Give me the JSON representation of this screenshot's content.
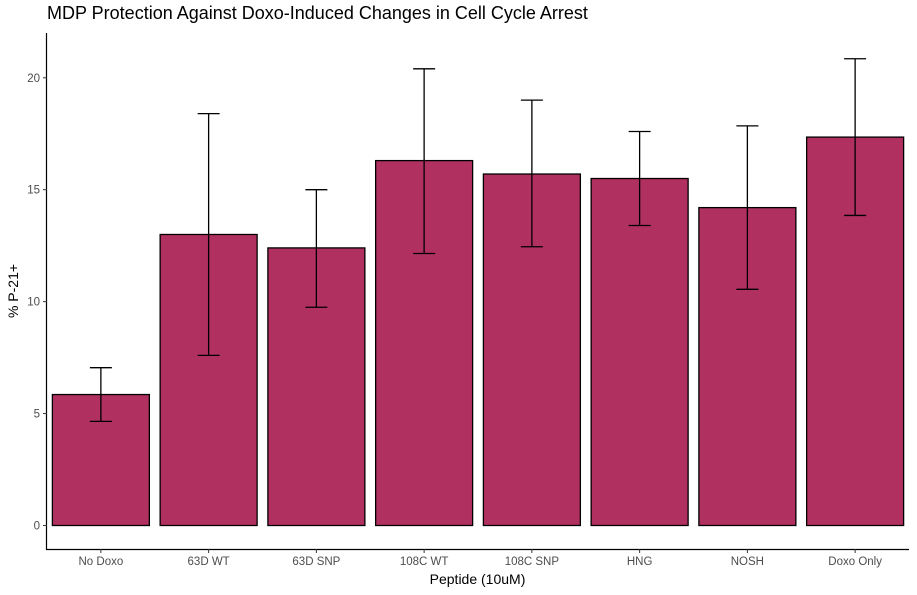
{
  "chart_data": {
    "type": "bar",
    "title": "MDP Protection Against Doxo-Induced Changes in Cell Cycle Arrest",
    "xlabel": "Peptide (10uM)",
    "ylabel": "% P-21+",
    "categories": [
      "No Doxo",
      "63D WT",
      "63D SNP",
      "108C WT",
      "108C SNP",
      "HNG",
      "NOSH",
      "Doxo Only"
    ],
    "values": [
      5.85,
      13.0,
      12.4,
      16.3,
      15.7,
      15.5,
      14.2,
      17.35
    ],
    "error_low": [
      4.65,
      7.6,
      9.75,
      12.15,
      12.45,
      13.4,
      10.55,
      13.85
    ],
    "error_high": [
      7.05,
      18.4,
      15.0,
      20.4,
      19.0,
      17.6,
      17.85,
      20.85
    ],
    "yticks": [
      0,
      5,
      10,
      15,
      20
    ],
    "ylim": [
      -1.05,
      22.0
    ],
    "bar_color": "#b03060",
    "grid": false,
    "legend": "none"
  }
}
